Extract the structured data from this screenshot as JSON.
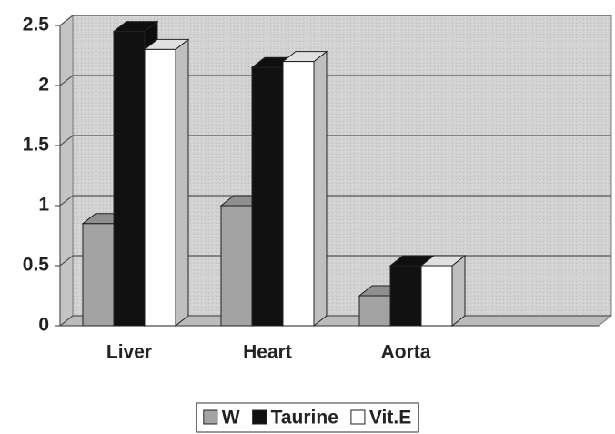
{
  "chart_data": {
    "type": "bar3d",
    "categories": [
      "Liver",
      "Heart",
      "Aorta"
    ],
    "series": [
      {
        "name": "W",
        "color": "#a3a3a3",
        "values": [
          0.85,
          1.0,
          0.25
        ]
      },
      {
        "name": "Taurine",
        "color": "#111111",
        "values": [
          2.45,
          2.15,
          0.5
        ]
      },
      {
        "name": "Vit.E",
        "color": "#ffffff",
        "values": [
          2.3,
          2.2,
          0.5
        ]
      }
    ],
    "ylim": [
      0,
      2.5
    ],
    "yticks": [
      0,
      0.5,
      1,
      1.5,
      2,
      2.5
    ],
    "grid": true
  }
}
